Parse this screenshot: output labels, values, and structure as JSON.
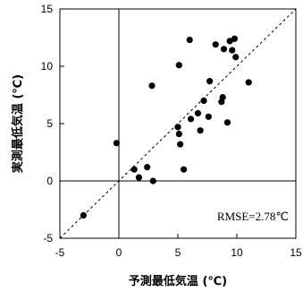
{
  "chart_data": {
    "type": "scatter",
    "xlabel": "予測最低気温 (℃)",
    "ylabel": "実測最低気温 (℃)",
    "xlim": [
      -5,
      15
    ],
    "ylim": [
      -5,
      15
    ],
    "xticks": [
      -5,
      0,
      5,
      10,
      15
    ],
    "yticks": [
      -5,
      0,
      5,
      10,
      15
    ],
    "grid": false,
    "reference_line": "y = x (dashed)",
    "annotation": "RMSE=2.78℃",
    "series": [
      {
        "marker": "filled-circle",
        "color": "#000000",
        "points": [
          [
            -3.0,
            -3.0
          ],
          [
            -0.2,
            3.3
          ],
          [
            1.3,
            1.0
          ],
          [
            1.7,
            0.3
          ],
          [
            2.4,
            1.2
          ],
          [
            2.9,
            0.0
          ],
          [
            2.8,
            8.3
          ],
          [
            5.0,
            4.7
          ],
          [
            5.1,
            4.1
          ],
          [
            5.2,
            3.2
          ],
          [
            5.1,
            10.1
          ],
          [
            5.5,
            1.0
          ],
          [
            6.0,
            12.3
          ],
          [
            6.1,
            5.4
          ],
          [
            6.7,
            5.9
          ],
          [
            6.9,
            4.4
          ],
          [
            7.2,
            7.0
          ],
          [
            7.6,
            5.6
          ],
          [
            7.7,
            8.7
          ],
          [
            8.2,
            11.9
          ],
          [
            8.7,
            6.9
          ],
          [
            8.8,
            7.3
          ],
          [
            8.9,
            11.5
          ],
          [
            9.2,
            5.1
          ],
          [
            9.4,
            12.2
          ],
          [
            9.6,
            11.4
          ],
          [
            9.8,
            12.4
          ],
          [
            9.9,
            10.8
          ],
          [
            11.0,
            8.6
          ]
        ]
      }
    ]
  }
}
